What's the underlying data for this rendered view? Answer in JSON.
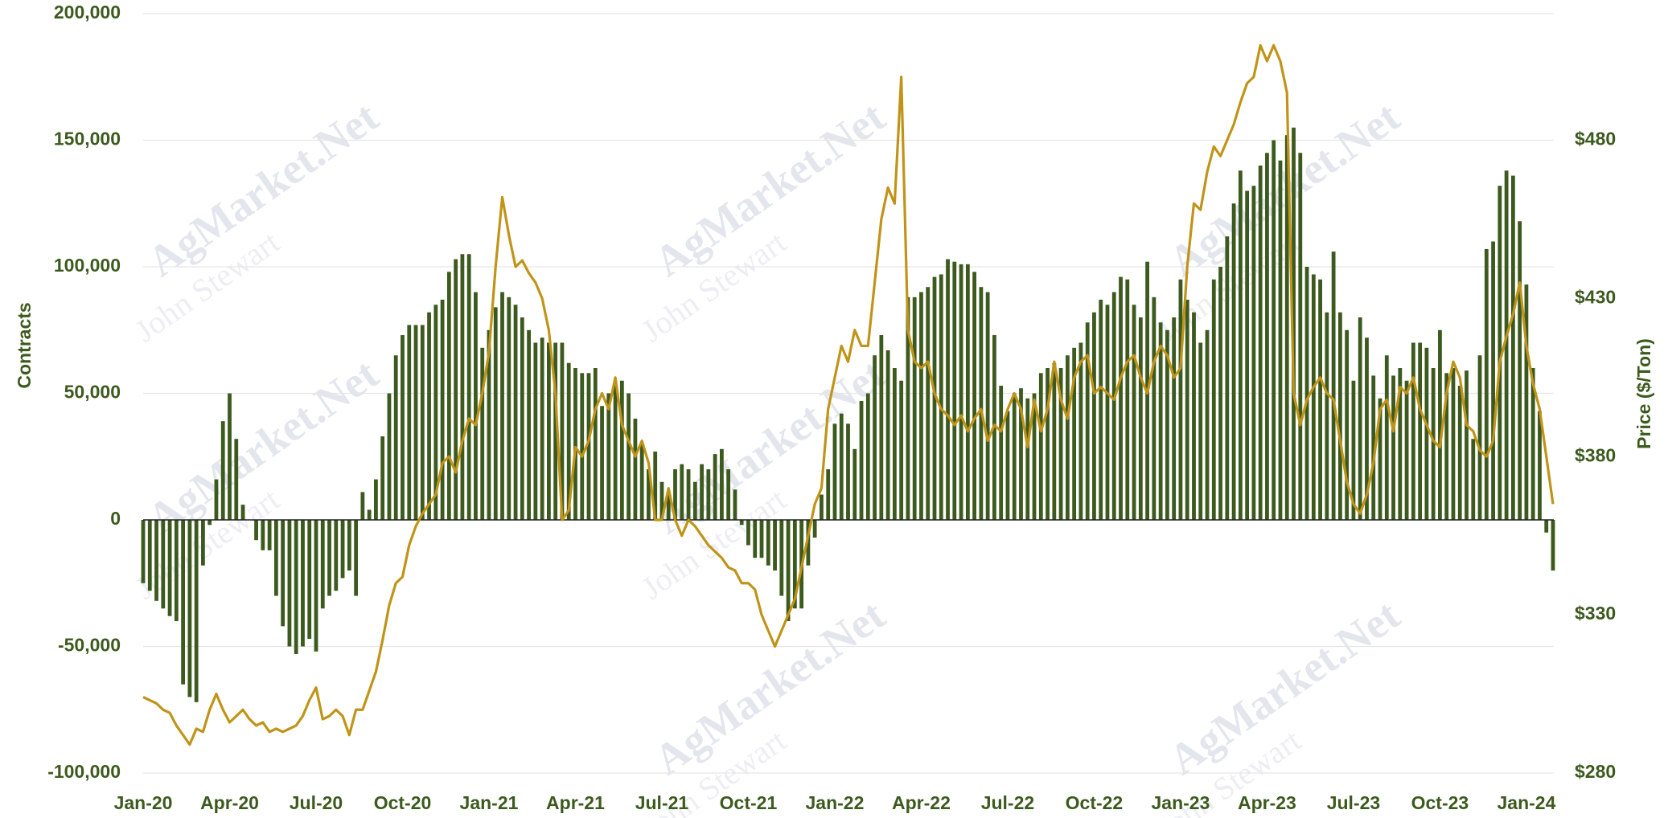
{
  "chart_data": {
    "type": "bar-line",
    "watermark": "AgMarket.Net",
    "watermark2": "John Stewart",
    "y_label": "Contracts",
    "y2_label": "Price ($/Ton)",
    "categories": [
      "Jan-20",
      null,
      null,
      null,
      null,
      null,
      null,
      null,
      null,
      null,
      null,
      null,
      null,
      "Apr-20",
      null,
      null,
      null,
      null,
      null,
      null,
      null,
      null,
      null,
      null,
      null,
      null,
      "Jul-20",
      null,
      null,
      null,
      null,
      null,
      null,
      null,
      null,
      null,
      null,
      null,
      null,
      "Oct-20",
      null,
      null,
      null,
      null,
      null,
      null,
      null,
      null,
      null,
      null,
      null,
      null,
      "Jan-21",
      null,
      null,
      null,
      null,
      null,
      null,
      null,
      null,
      null,
      null,
      null,
      null,
      "Apr-21",
      null,
      null,
      null,
      null,
      null,
      null,
      null,
      null,
      null,
      null,
      null,
      null,
      "Jul-21",
      null,
      null,
      null,
      null,
      null,
      null,
      null,
      null,
      null,
      null,
      null,
      null,
      "Oct-21",
      null,
      null,
      null,
      null,
      null,
      null,
      null,
      null,
      null,
      null,
      null,
      null,
      "Jan-22",
      null,
      null,
      null,
      null,
      null,
      null,
      null,
      null,
      null,
      null,
      null,
      null,
      "Apr-22",
      null,
      null,
      null,
      null,
      null,
      null,
      null,
      null,
      null,
      null,
      null,
      null,
      "Jul-22",
      null,
      null,
      null,
      null,
      null,
      null,
      null,
      null,
      null,
      null,
      null,
      null,
      "Oct-22",
      null,
      null,
      null,
      null,
      null,
      null,
      null,
      null,
      null,
      null,
      null,
      null,
      "Jan-23",
      null,
      null,
      null,
      null,
      null,
      null,
      null,
      null,
      null,
      null,
      null,
      null,
      "Apr-23",
      null,
      null,
      null,
      null,
      null,
      null,
      null,
      null,
      null,
      null,
      null,
      null,
      "Jul-23",
      null,
      null,
      null,
      null,
      null,
      null,
      null,
      null,
      null,
      null,
      null,
      null,
      "Oct-23",
      null,
      null,
      null,
      null,
      null,
      null,
      null,
      null,
      null,
      null,
      null,
      null,
      "Jan-24",
      null,
      null,
      null,
      null
    ],
    "series": [
      {
        "type": "bar",
        "color": "#3d5a1e",
        "values": [
          -25000,
          -28000,
          -32000,
          -35000,
          -38000,
          -40000,
          -65000,
          -70000,
          -72000,
          -18000,
          -2000,
          16000,
          39000,
          50000,
          32000,
          6000,
          0,
          -8000,
          -12000,
          -12000,
          -30000,
          -42000,
          -50000,
          -53000,
          -50000,
          -47000,
          -52000,
          -35000,
          -30000,
          -28000,
          -23000,
          -20000,
          -30000,
          11000,
          4000,
          16000,
          33000,
          50000,
          65000,
          73000,
          77000,
          77000,
          77000,
          82000,
          85000,
          87000,
          98000,
          103000,
          105000,
          105000,
          90000,
          68000,
          75000,
          84000,
          90000,
          88000,
          85000,
          80000,
          75000,
          70000,
          72000,
          70000,
          70000,
          70000,
          62000,
          60000,
          58000,
          58000,
          60000,
          45000,
          50000,
          55000,
          55000,
          50000,
          40000,
          30000,
          20000,
          27000,
          15000,
          10000,
          20000,
          22000,
          20000,
          15000,
          22000,
          20000,
          26000,
          28000,
          20000,
          12000,
          -2000,
          -10000,
          -15000,
          -15000,
          -18000,
          -20000,
          -30000,
          -40000,
          -35000,
          -35000,
          -18000,
          -7000,
          10000,
          20000,
          38000,
          42000,
          38000,
          28000,
          47000,
          50000,
          65000,
          73000,
          67000,
          60000,
          55000,
          88000,
          88000,
          90000,
          92000,
          96000,
          97000,
          103000,
          102000,
          101000,
          101000,
          98000,
          92000,
          90000,
          73000,
          53000,
          43000,
          50000,
          52000,
          48000,
          50000,
          58000,
          60000,
          62000,
          60000,
          65000,
          68000,
          70000,
          78000,
          82000,
          87000,
          85000,
          90000,
          96000,
          95000,
          85000,
          80000,
          102000,
          88000,
          78000,
          75000,
          80000,
          95000,
          87000,
          82000,
          70000,
          75000,
          95000,
          100000,
          112000,
          125000,
          138000,
          130000,
          132000,
          140000,
          145000,
          150000,
          142000,
          152000,
          155000,
          145000,
          100000,
          97000,
          95000,
          82000,
          106000,
          82000,
          75000,
          55000,
          80000,
          72000,
          57000,
          48000,
          65000,
          57000,
          60000,
          55000,
          70000,
          70000,
          68000,
          60000,
          75000,
          58000,
          60000,
          53000,
          59000,
          32000,
          65000,
          107000,
          110000,
          132000,
          138000,
          136000,
          118000,
          93000,
          60000,
          43000,
          -5000,
          -20000
        ]
      },
      {
        "type": "line",
        "axis": "y2",
        "color": "#c09418",
        "values": [
          304,
          303,
          302,
          300,
          299,
          295,
          292,
          289,
          294,
          293,
          300,
          305,
          300,
          296,
          298,
          300,
          297,
          295,
          296,
          293,
          294,
          293,
          294,
          295,
          298,
          303,
          307,
          297,
          298,
          300,
          298,
          292,
          300,
          300,
          306,
          312,
          322,
          333,
          340,
          342,
          352,
          358,
          362,
          365,
          368,
          378,
          380,
          375,
          385,
          392,
          390,
          400,
          413,
          440,
          462,
          450,
          440,
          442,
          438,
          435,
          430,
          420,
          400,
          360,
          363,
          383,
          380,
          385,
          395,
          400,
          395,
          405,
          390,
          385,
          380,
          385,
          378,
          360,
          360,
          370,
          360,
          355,
          360,
          358,
          355,
          352,
          350,
          348,
          345,
          344,
          340,
          340,
          338,
          330,
          325,
          320,
          325,
          330,
          335,
          345,
          355,
          365,
          370,
          395,
          405,
          415,
          410,
          420,
          415,
          415,
          435,
          455,
          465,
          460,
          500,
          420,
          410,
          408,
          410,
          400,
          395,
          393,
          390,
          393,
          388,
          392,
          395,
          385,
          390,
          388,
          395,
          400,
          395,
          383,
          398,
          388,
          395,
          410,
          398,
          392,
          405,
          410,
          412,
          400,
          402,
          400,
          398,
          405,
          410,
          412,
          405,
          400,
          410,
          415,
          412,
          405,
          408,
          440,
          460,
          458,
          470,
          478,
          475,
          480,
          485,
          492,
          498,
          500,
          510,
          505,
          510,
          505,
          495,
          400,
          390,
          398,
          402,
          405,
          400,
          398,
          385,
          372,
          365,
          362,
          368,
          378,
          395,
          398,
          388,
          402,
          400,
          405,
          395,
          390,
          385,
          383,
          400,
          410,
          405,
          390,
          388,
          382,
          380,
          385,
          410,
          418,
          425,
          435,
          415,
          403,
          395,
          380,
          365
        ]
      }
    ],
    "ylim": [
      -100000,
      200000
    ],
    "yticks": [
      {
        "value": -100000,
        "label": "-100,000"
      },
      {
        "value": -50000,
        "label": "-50,000"
      },
      0,
      {
        "value": 50000,
        "label": "50,000"
      },
      {
        "value": 100000,
        "label": "100,000"
      },
      {
        "value": 150000,
        "label": "150,000"
      },
      {
        "value": 200000,
        "label": "200,000"
      }
    ],
    "y2lim": [
      280,
      520
    ],
    "y2ticks": [
      {
        "value": 280,
        "label": "$280"
      },
      {
        "value": 330,
        "label": "$330"
      },
      {
        "value": 380,
        "label": "$380"
      },
      {
        "value": 430,
        "label": "$430"
      },
      {
        "value": 480,
        "label": "$480"
      }
    ],
    "grid": true
  }
}
